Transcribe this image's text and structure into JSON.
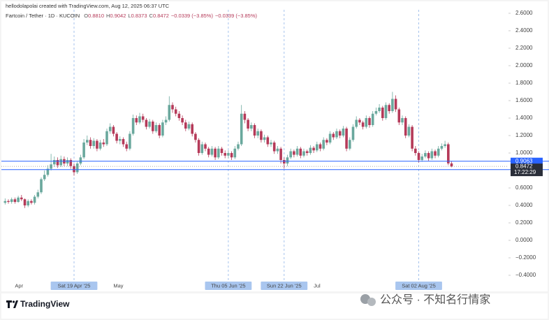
{
  "chart_data": {
    "type": "candlestick",
    "credit": "hellodolapolai created with TradingView.com, Aug 12, 2025 06:37 UTC",
    "title": "Fartcoin / Tether · 1D · KUCOIN",
    "legend_items": [
      {
        "key": "O",
        "value": "0.8810"
      },
      {
        "key": "H",
        "value": "0.9042"
      },
      {
        "key": "L",
        "value": "0.8373"
      },
      {
        "key": "C",
        "value": "0.8472"
      }
    ],
    "change": "−0.0339 (−3.85%)",
    "change_repeat": "−0.0339 (−3.85%)",
    "categories": [
      null,
      null,
      null,
      "Apr",
      null,
      null,
      null,
      null,
      null,
      null,
      null,
      null,
      null,
      null,
      null,
      null,
      null,
      null,
      null,
      null,
      null,
      "Sat 19 Apr '25",
      null,
      null,
      null,
      null,
      null,
      null,
      null,
      null,
      null,
      null,
      null,
      "May",
      null,
      null,
      null,
      null,
      null,
      null,
      null,
      null,
      null,
      null,
      null,
      null,
      null,
      null,
      null,
      null,
      null,
      null,
      null,
      null,
      null,
      null,
      null,
      null,
      null,
      null,
      null,
      null,
      null,
      null,
      null,
      null,
      null,
      null,
      "Thu 05 Jun '25",
      null,
      null,
      null,
      null,
      null,
      null,
      null,
      null,
      null,
      null,
      null,
      null,
      null,
      null,
      null,
      null,
      "Sun 22 Jun '25",
      null,
      null,
      null,
      null,
      null,
      null,
      null,
      null,
      "Jul",
      null,
      null,
      null,
      null,
      null,
      null,
      null,
      null,
      null,
      null,
      null,
      null,
      null,
      null,
      null,
      null,
      null,
      null,
      null,
      null,
      null,
      null,
      null,
      null,
      null,
      null,
      null,
      null,
      null,
      null,
      null,
      "Sat 02 Aug '25",
      null,
      null,
      null,
      null,
      null,
      null,
      null,
      null,
      null,
      null
    ],
    "highlighted_categories": [
      21,
      68,
      85,
      126
    ],
    "open": [
      0.43,
      0.45,
      0.44,
      0.47,
      0.44,
      0.49,
      0.47,
      0.4,
      0.45,
      0.43,
      0.5,
      0.55,
      0.7,
      0.75,
      0.82,
      0.87,
      0.92,
      0.86,
      0.93,
      0.88,
      0.92,
      0.85,
      0.78,
      0.88,
      0.95,
      1.12,
      1.15,
      1.08,
      1.14,
      1.05,
      1.12,
      1.1,
      1.25,
      1.3,
      1.22,
      1.14,
      1.16,
      1.1,
      1.05,
      1.22,
      1.4,
      1.35,
      1.42,
      1.38,
      1.3,
      1.36,
      1.25,
      1.32,
      1.2,
      1.35,
      1.38,
      1.55,
      1.5,
      1.45,
      1.4,
      1.35,
      1.28,
      1.33,
      1.22,
      1.15,
      1.0,
      1.1,
      1.05,
      0.98,
      1.05,
      0.95,
      1.05,
      1.0,
      0.97,
      1.0,
      0.95,
      1.05,
      1.1,
      1.45,
      1.38,
      1.28,
      1.32,
      1.2,
      1.25,
      1.15,
      1.18,
      1.1,
      1.12,
      1.02,
      1.05,
      0.92,
      0.88,
      0.95,
      1.02,
      0.98,
      1.05,
      0.97,
      1.02,
      1.0,
      1.06,
      1.03,
      1.1,
      1.05,
      1.15,
      1.12,
      1.22,
      1.18,
      1.25,
      1.2,
      1.28,
      1.05,
      1.15,
      1.3,
      1.38,
      1.35,
      1.3,
      1.4,
      1.32,
      1.45,
      1.48,
      1.52,
      1.4,
      1.55,
      1.48,
      1.62,
      1.5,
      1.35,
      1.4,
      1.2,
      1.3,
      1.05,
      1.0,
      0.92,
      0.96,
      1.0,
      0.94,
      1.02,
      0.97,
      1.05,
      1.08,
      1.1,
      0.881
    ],
    "high": [
      0.48,
      0.47,
      0.49,
      0.49,
      0.51,
      0.52,
      0.48,
      0.47,
      0.47,
      0.52,
      0.58,
      0.72,
      0.8,
      0.86,
      0.99,
      0.96,
      0.95,
      0.97,
      0.96,
      0.95,
      0.94,
      0.88,
      0.9,
      0.98,
      1.16,
      1.2,
      1.18,
      1.17,
      1.16,
      1.15,
      1.16,
      1.28,
      1.34,
      1.32,
      1.24,
      1.19,
      1.18,
      1.13,
      1.25,
      1.44,
      1.43,
      1.46,
      1.45,
      1.4,
      1.39,
      1.38,
      1.35,
      1.34,
      1.38,
      1.42,
      1.65,
      1.58,
      1.53,
      1.48,
      1.43,
      1.38,
      1.36,
      1.35,
      1.24,
      1.17,
      1.13,
      1.12,
      1.07,
      1.08,
      1.07,
      1.08,
      1.07,
      1.03,
      1.03,
      1.02,
      1.08,
      1.13,
      1.55,
      1.48,
      1.4,
      1.35,
      1.34,
      1.28,
      1.27,
      1.21,
      1.2,
      1.15,
      1.14,
      1.08,
      1.07,
      0.95,
      0.98,
      1.05,
      1.04,
      1.08,
      1.07,
      1.05,
      1.04,
      1.09,
      1.08,
      1.13,
      1.12,
      1.18,
      1.17,
      1.25,
      1.24,
      1.28,
      1.27,
      1.31,
      1.3,
      1.18,
      1.33,
      1.42,
      1.4,
      1.37,
      1.43,
      1.42,
      1.48,
      1.52,
      1.56,
      1.54,
      1.58,
      1.57,
      1.7,
      1.66,
      1.52,
      1.43,
      1.42,
      1.33,
      1.32,
      1.08,
      1.02,
      0.99,
      1.03,
      1.02,
      1.05,
      1.04,
      1.08,
      1.11,
      1.14,
      1.12,
      0.9042
    ],
    "low": [
      0.41,
      0.42,
      0.42,
      0.42,
      0.43,
      0.45,
      0.37,
      0.38,
      0.41,
      0.41,
      0.48,
      0.53,
      0.68,
      0.73,
      0.8,
      0.84,
      0.83,
      0.84,
      0.85,
      0.85,
      0.82,
      0.74,
      0.76,
      0.86,
      0.93,
      1.09,
      1.05,
      1.05,
      1.02,
      1.03,
      1.07,
      1.08,
      1.22,
      1.19,
      1.11,
      1.1,
      1.07,
      1.02,
      1.03,
      1.2,
      1.32,
      1.33,
      1.35,
      1.27,
      1.28,
      1.22,
      1.23,
      1.17,
      1.18,
      1.32,
      1.36,
      1.46,
      1.42,
      1.37,
      1.32,
      1.25,
      1.26,
      1.19,
      1.12,
      0.97,
      0.98,
      1.02,
      0.95,
      0.96,
      0.92,
      0.93,
      0.97,
      0.94,
      0.94,
      0.92,
      0.93,
      1.03,
      1.08,
      1.34,
      1.25,
      1.25,
      1.17,
      1.17,
      1.12,
      1.12,
      1.07,
      1.07,
      0.99,
      0.99,
      0.88,
      0.82,
      0.85,
      0.93,
      0.95,
      0.96,
      0.94,
      0.95,
      0.97,
      0.98,
      1.0,
      1.01,
      1.02,
      1.03,
      1.09,
      1.1,
      1.15,
      1.16,
      1.17,
      1.18,
      1.02,
      1.03,
      1.13,
      1.28,
      1.32,
      1.27,
      1.28,
      1.29,
      1.3,
      1.43,
      1.46,
      1.37,
      1.38,
      1.45,
      1.46,
      1.47,
      1.32,
      1.32,
      1.17,
      1.18,
      1.02,
      0.97,
      0.89,
      0.9,
      0.94,
      0.91,
      0.92,
      0.94,
      0.95,
      1.03,
      1.06,
      0.86,
      0.8373
    ],
    "close": [
      0.45,
      0.44,
      0.47,
      0.44,
      0.49,
      0.47,
      0.4,
      0.45,
      0.43,
      0.5,
      0.55,
      0.7,
      0.75,
      0.82,
      0.87,
      0.92,
      0.86,
      0.93,
      0.88,
      0.92,
      0.85,
      0.78,
      0.88,
      0.95,
      1.12,
      1.15,
      1.08,
      1.14,
      1.05,
      1.12,
      1.1,
      1.25,
      1.3,
      1.22,
      1.14,
      1.16,
      1.1,
      1.05,
      1.22,
      1.4,
      1.35,
      1.42,
      1.38,
      1.3,
      1.36,
      1.25,
      1.32,
      1.2,
      1.35,
      1.38,
      1.55,
      1.5,
      1.45,
      1.4,
      1.35,
      1.28,
      1.33,
      1.22,
      1.15,
      1.0,
      1.1,
      1.05,
      0.98,
      1.05,
      0.95,
      1.05,
      1.0,
      0.97,
      1.0,
      0.95,
      1.05,
      1.1,
      1.45,
      1.38,
      1.28,
      1.32,
      1.2,
      1.25,
      1.15,
      1.18,
      1.1,
      1.12,
      1.02,
      1.05,
      0.92,
      0.88,
      0.95,
      1.02,
      0.98,
      1.05,
      0.97,
      1.02,
      1.0,
      1.06,
      1.03,
      1.1,
      1.05,
      1.15,
      1.12,
      1.22,
      1.18,
      1.25,
      1.2,
      1.28,
      1.05,
      1.15,
      1.3,
      1.38,
      1.35,
      1.3,
      1.4,
      1.32,
      1.45,
      1.48,
      1.52,
      1.4,
      1.55,
      1.48,
      1.62,
      1.5,
      1.35,
      1.4,
      1.2,
      1.3,
      1.05,
      1.0,
      0.92,
      0.96,
      1.0,
      0.94,
      1.02,
      0.97,
      1.05,
      1.08,
      1.1,
      0.881,
      0.8472
    ],
    "up_color": "#6aa89d",
    "down_color": "#b53a59",
    "ylim": [
      -0.5,
      2.7
    ],
    "yticks": [
      {
        "value": 2.6,
        "label": "2.6000"
      },
      {
        "value": 2.4,
        "label": "2.4000"
      },
      {
        "value": 2.2,
        "label": "2.2000"
      },
      {
        "value": 2.0,
        "label": "2.0000"
      },
      {
        "value": 1.8,
        "label": "1.8000"
      },
      {
        "value": 1.6,
        "label": "1.6000"
      },
      {
        "value": 1.4,
        "label": "1.4000"
      },
      {
        "value": 1.2,
        "label": "1.2000"
      },
      {
        "value": 1.0,
        "label": "1.0000"
      },
      {
        "value": 0.6,
        "label": "0.6000"
      },
      {
        "value": 0.4,
        "label": "0.4000"
      },
      {
        "value": 0.2,
        "label": "0.2000"
      },
      {
        "value": 0,
        "label": "0.0000"
      },
      {
        "value": -0.2,
        "label": "−0.2000"
      },
      {
        "value": -0.4,
        "label": "−0.4000"
      }
    ],
    "price_lines": [
      {
        "value": 0.9063,
        "label": "0.9063",
        "color": "#2962ff"
      },
      {
        "value": 0.81,
        "color": "#2962ff"
      }
    ],
    "last_price": 0.8472,
    "countdown": "17:22:29",
    "brand": "TradingView",
    "watermark": "公众号 · 不知名行情家"
  }
}
